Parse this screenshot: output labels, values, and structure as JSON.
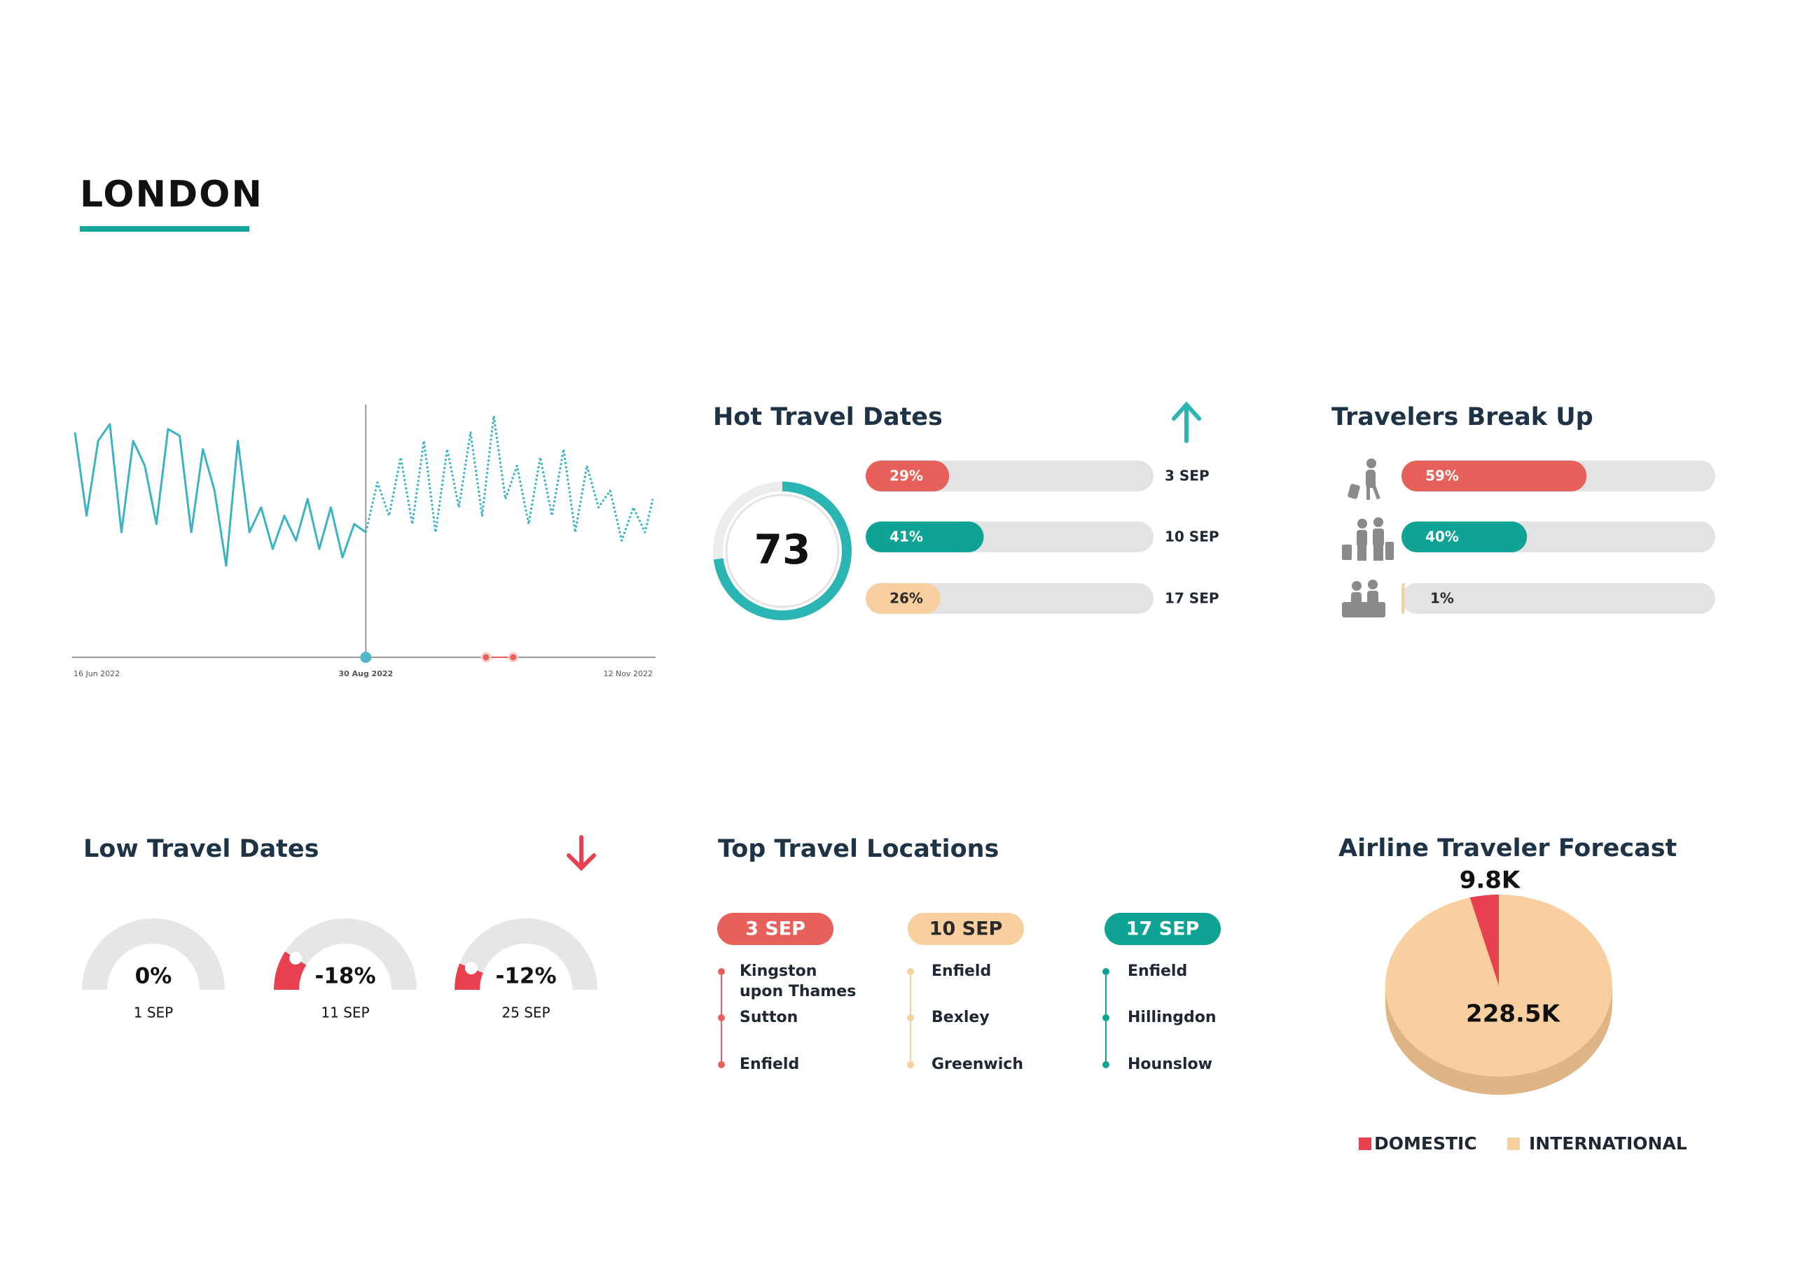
{
  "title": "LONDON",
  "chart_data": [
    {
      "type": "line",
      "x": [
        "2022-06-16",
        "2022-06-19",
        "2022-06-22",
        "2022-06-25",
        "2022-06-28",
        "2022-07-01",
        "2022-07-04",
        "2022-07-07",
        "2022-07-10",
        "2022-07-13",
        "2022-07-16",
        "2022-07-19",
        "2022-07-22",
        "2022-07-25",
        "2022-07-28",
        "2022-07-31",
        "2022-08-03",
        "2022-08-06",
        "2022-08-09",
        "2022-08-12",
        "2022-08-15",
        "2022-08-18",
        "2022-08-21",
        "2022-08-24",
        "2022-08-27",
        "2022-08-30",
        "2022-09-02",
        "2022-09-05",
        "2022-09-08",
        "2022-09-11",
        "2022-09-14",
        "2022-09-17",
        "2022-09-20",
        "2022-09-23",
        "2022-09-26",
        "2022-09-29",
        "2022-10-02",
        "2022-10-05",
        "2022-10-08",
        "2022-10-11",
        "2022-10-14",
        "2022-10-17",
        "2022-10-20",
        "2022-10-23",
        "2022-10-26",
        "2022-10-29",
        "2022-11-01",
        "2022-11-04",
        "2022-11-07",
        "2022-11-10",
        "2022-11-12"
      ],
      "series": [
        {
          "color": "#3bb3c3",
          "style": "solid",
          "values": [
            90,
            40,
            85,
            95,
            30,
            85,
            70,
            35,
            92,
            88,
            30,
            80,
            55,
            10,
            85,
            30,
            45,
            20,
            40,
            25,
            50,
            20,
            45,
            15,
            35,
            30,
            null,
            null,
            null,
            null,
            null,
            null,
            null,
            null,
            null,
            null,
            null,
            null,
            null,
            null,
            null,
            null,
            null,
            null,
            null,
            null,
            null,
            null,
            null,
            null,
            null
          ]
        },
        {
          "color": "#3bb3c3",
          "style": "dotted",
          "values": [
            null,
            null,
            null,
            null,
            null,
            null,
            null,
            null,
            null,
            null,
            null,
            null,
            null,
            null,
            null,
            null,
            null,
            null,
            null,
            null,
            null,
            null,
            null,
            null,
            null,
            30,
            60,
            40,
            75,
            35,
            85,
            30,
            80,
            45,
            90,
            40,
            100,
            50,
            70,
            35,
            75,
            40,
            80,
            30,
            70,
            45,
            55,
            25,
            45,
            30,
            50
          ]
        }
      ],
      "xlim": [
        "2022-06-16",
        "2022-11-12"
      ],
      "xticks": [
        {
          "value": "2022-06-16",
          "label": "16 Jun 2022"
        },
        {
          "value": "2022-08-30",
          "label": "30 Aug 2022"
        },
        {
          "value": "2022-11-12",
          "label": "12 Nov 2022"
        }
      ],
      "split": "2022-08-30",
      "split_color": "#4fb8c9",
      "highlights": [
        "2022-09-30",
        "2022-10-07"
      ],
      "highlight_color": "#e8605a"
    },
    {
      "type": "progress",
      "title": "Hot Travel Dates",
      "score": 73,
      "score_color": "#2bb5b2",
      "categories": [
        "3 SEP",
        "10 SEP",
        "17 SEP"
      ],
      "values": [
        29,
        41,
        26
      ],
      "value_labels": [
        "29%",
        "41%",
        "26%"
      ],
      "colors": [
        "#e8605a",
        "#0fa396",
        "#f8cf9e"
      ]
    },
    {
      "type": "progress",
      "title": "Travelers Break Up",
      "categories": [
        null,
        null,
        null
      ],
      "values": [
        59,
        40,
        1
      ],
      "value_labels": [
        "59%",
        "40%",
        "1%"
      ],
      "colors": [
        "#e8605a",
        "#0fa396",
        "#f8cf9e"
      ]
    },
    {
      "type": "gauge",
      "title": "Low Travel Dates",
      "categories": [
        "1 SEP",
        "11 SEP",
        "25 SEP"
      ],
      "values": [
        0,
        -18,
        -12
      ],
      "value_labels": [
        "0%",
        "-18%",
        "-12%"
      ],
      "color": "#e8404e"
    },
    {
      "type": "pie",
      "title": "Airline Traveler Forecast",
      "categories": [
        "DOMESTIC",
        "INTERNATIONAL"
      ],
      "values": [
        9.8,
        228.5
      ],
      "value_labels": [
        "9.8K",
        "228.5K"
      ],
      "colors": [
        "#e8404e",
        "#f9cf9f"
      ]
    }
  ],
  "locations": {
    "title": "Top Travel Locations",
    "columns": [
      {
        "date": "3 SEP",
        "color": "#e8605a",
        "places": [
          "Kingston upon Thames",
          "Sutton",
          "Enfield"
        ]
      },
      {
        "date": "10 SEP",
        "color": "#f8cf9e",
        "places": [
          "Enfield",
          "Bexley",
          "Greenwich"
        ]
      },
      {
        "date": "17 SEP",
        "color": "#0fa396",
        "places": [
          "Enfield",
          "Hillingdon",
          "Hounslow"
        ]
      }
    ]
  }
}
